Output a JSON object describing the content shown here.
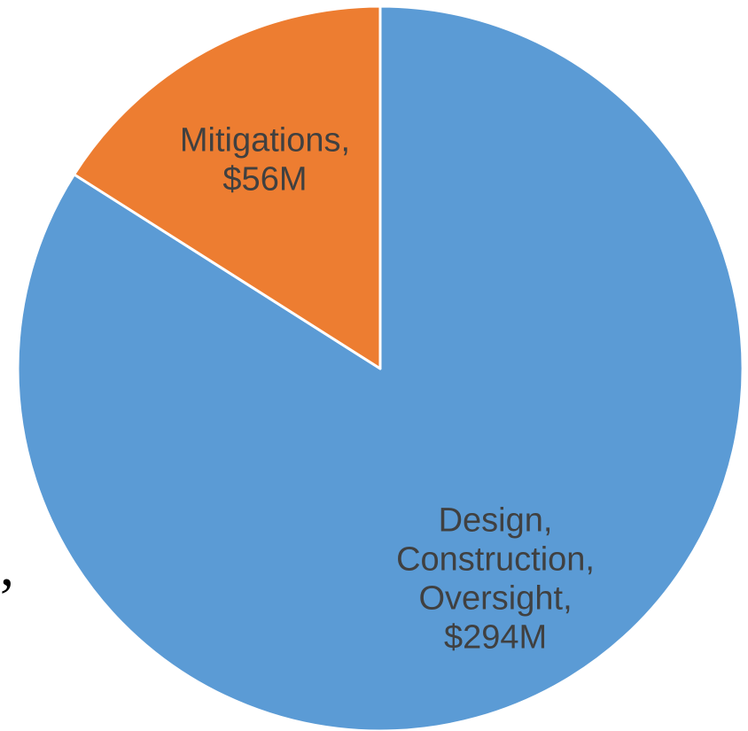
{
  "chart_data": {
    "type": "pie",
    "start": "top",
    "direction": "clockwise",
    "legend": "none",
    "slices": [
      {
        "label": "Design, Construction, Oversight",
        "value": 294,
        "data_label": [
          "Design,",
          "Construction,",
          "Oversight,",
          "$294M"
        ],
        "color": "#5b9bd5"
      },
      {
        "label": "Mitigations",
        "value": 56,
        "data_label": [
          "Mitigations,",
          "$56M"
        ],
        "color": "#ed7d31"
      }
    ],
    "border_color": "#ffffff"
  },
  "stray_text": ","
}
